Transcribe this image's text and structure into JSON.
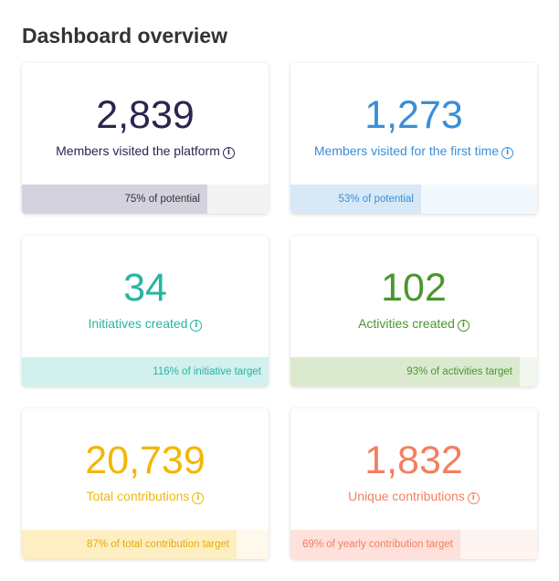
{
  "page": {
    "title": "Dashboard overview"
  },
  "cards": [
    {
      "value": "2,839",
      "label": "Members visited the platform",
      "progress_text": "75% of potential",
      "progress_fraction": 0.75,
      "value_color": "#2a2550",
      "fill_color": "#d4d2de",
      "track_color": "#f3f3f4",
      "bar_text_color": "#333333",
      "icon": "info-icon"
    },
    {
      "value": "1,273",
      "label": "Members visited for the first time",
      "progress_text": "53% of potential",
      "progress_fraction": 0.53,
      "value_color": "#3b8ed6",
      "fill_color": "#d8e8f7",
      "track_color": "#f3f8fd",
      "bar_text_color": "#3b8ed6",
      "icon": "info-icon"
    },
    {
      "value": "34",
      "label": "Initiatives created",
      "progress_text": "116% of initiative target",
      "progress_fraction": 1.16,
      "value_color": "#26b5a1",
      "fill_color": "#d2f0ed",
      "track_color": "#eefaf8",
      "bar_text_color": "#26b5a1",
      "icon": "info-icon"
    },
    {
      "value": "102",
      "label": "Activities created",
      "progress_text": "93% of activities target",
      "progress_fraction": 0.93,
      "value_color": "#4a962d",
      "fill_color": "#dbeacf",
      "track_color": "#f1f7ec",
      "bar_text_color": "#4a962d",
      "icon": "info-icon"
    },
    {
      "value": "20,739",
      "label": "Total contributions",
      "progress_text": "87% of total contribution target",
      "progress_fraction": 0.87,
      "value_color": "#f2b705",
      "fill_color": "#fdefc3",
      "track_color": "#fef9ec",
      "bar_text_color": "#e6ac00",
      "icon": "info-icon"
    },
    {
      "value": "1,832",
      "label": "Unique contributions",
      "progress_text": "69% of yearly contribution target",
      "progress_fraction": 0.69,
      "value_color": "#f47f5f",
      "fill_color": "#fde1da",
      "track_color": "#fef4f1",
      "bar_text_color": "#f47f5f",
      "icon": "info-icon"
    }
  ]
}
